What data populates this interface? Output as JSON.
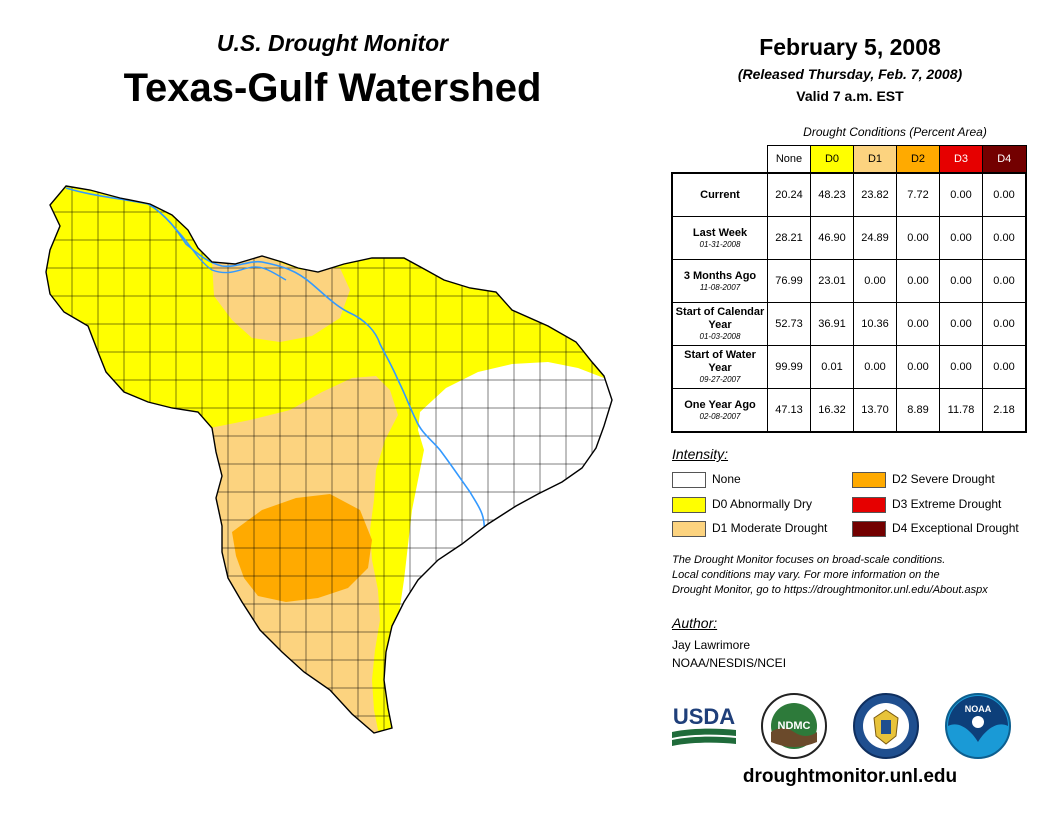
{
  "header": {
    "subtitle": "U.S. Drought Monitor",
    "title": "Texas-Gulf Watershed",
    "date": "February 5, 2008",
    "released": "(Released Thursday, Feb. 7, 2008)",
    "valid": "Valid 7 a.m. EST"
  },
  "table": {
    "title": "Drought Conditions (Percent Area)",
    "columns": [
      "None",
      "D0",
      "D1",
      "D2",
      "D3",
      "D4"
    ],
    "rows": [
      {
        "label": "Current",
        "date": "",
        "values": [
          "20.24",
          "48.23",
          "23.82",
          "7.72",
          "0.00",
          "0.00"
        ]
      },
      {
        "label": "Last Week",
        "date": "01-31-2008",
        "values": [
          "28.21",
          "46.90",
          "24.89",
          "0.00",
          "0.00",
          "0.00"
        ]
      },
      {
        "label": "3 Months Ago",
        "date": "11-08-2007",
        "values": [
          "76.99",
          "23.01",
          "0.00",
          "0.00",
          "0.00",
          "0.00"
        ]
      },
      {
        "label": "Start of Calendar Year",
        "date": "01-03-2008",
        "values": [
          "52.73",
          "36.91",
          "10.36",
          "0.00",
          "0.00",
          "0.00"
        ]
      },
      {
        "label": "Start of Water Year",
        "date": "09-27-2007",
        "values": [
          "99.99",
          "0.01",
          "0.00",
          "0.00",
          "0.00",
          "0.00"
        ]
      },
      {
        "label": "One Year Ago",
        "date": "02-08-2007",
        "values": [
          "47.13",
          "16.32",
          "13.70",
          "8.89",
          "11.78",
          "2.18"
        ]
      }
    ]
  },
  "legend": {
    "title": "Intensity:",
    "items": [
      {
        "label": "None",
        "color": "#ffffff"
      },
      {
        "label": "D0 Abnormally Dry",
        "color": "#ffff00"
      },
      {
        "label": "D1 Moderate Drought",
        "color": "#fcd37f"
      },
      {
        "label": "D2 Severe Drought",
        "color": "#ffaa00"
      },
      {
        "label": "D3 Extreme Drought",
        "color": "#e60000"
      },
      {
        "label": "D4 Exceptional Drought",
        "color": "#730000"
      }
    ]
  },
  "note": {
    "line1": "The Drought Monitor focuses on broad-scale conditions.",
    "line2": "Local conditions may vary. For more information on the",
    "line3": "Drought Monitor, go to https://droughtmonitor.unl.edu/About.aspx"
  },
  "author": {
    "title": "Author:",
    "name": "Jay Lawrimore",
    "org": "NOAA/NESDIS/NCEI"
  },
  "logos": {
    "usda": "USDA",
    "ndmc": "NDMC",
    "noaa": "NOAA"
  },
  "website": "droughtmonitor.unl.edu",
  "colors": {
    "none": "#ffffff",
    "d0": "#ffff00",
    "d1": "#fcd37f",
    "d2": "#ffaa00",
    "d3": "#e60000",
    "d4": "#730000",
    "river": "#3399ff"
  }
}
